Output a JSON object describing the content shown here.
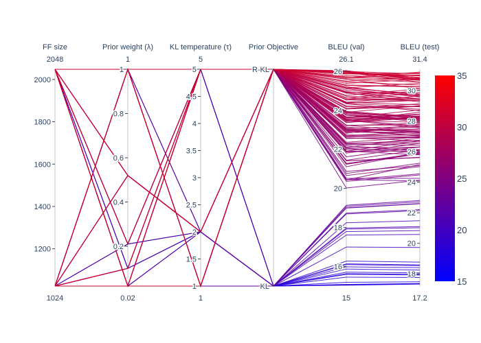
{
  "chart_data": {
    "type": "parallel_coordinates",
    "title": "",
    "colorscale": {
      "low_color": "#0000ff",
      "high_color": "#ff0000",
      "range": [
        15,
        35
      ],
      "ticks": [
        "15",
        "20",
        "25",
        "30",
        "35"
      ]
    },
    "dimensions": [
      {
        "label": "FF size",
        "range": [
          1024,
          2048
        ],
        "range_labels": [
          "1024",
          "2048"
        ],
        "ticks": [
          1200,
          1400,
          1600,
          1800,
          2000
        ],
        "tick_labels": [
          "1200",
          "1400",
          "1600",
          "1800",
          "2000"
        ]
      },
      {
        "label": "Prior weight (λ)",
        "range": [
          0.02,
          1
        ],
        "range_labels": [
          "0.02",
          "1"
        ],
        "ticks": [
          0.2,
          0.4,
          0.6,
          0.8,
          1
        ],
        "tick_labels": [
          "0.2",
          "0.4",
          "0.6",
          "0.8",
          "1"
        ]
      },
      {
        "label": "KL temperature (τ)",
        "range": [
          1,
          5
        ],
        "range_labels": [
          "1",
          "5"
        ],
        "ticks": [
          1,
          1.5,
          2,
          2.5,
          3,
          3.5,
          4,
          4.5,
          5
        ],
        "tick_labels": [
          "1",
          "1.5",
          "2",
          "2.5",
          "3",
          "3.5",
          "4",
          "4.5",
          "5"
        ]
      },
      {
        "label": "Prior Objective",
        "range": [
          0,
          1
        ],
        "range_labels": [
          "",
          ""
        ],
        "ticks": [
          0,
          1
        ],
        "tick_labels": [
          "KL",
          "R-KL"
        ]
      },
      {
        "label": "BLEU (val)",
        "range": [
          15,
          26.1
        ],
        "range_labels": [
          "15",
          "26.1"
        ],
        "ticks": [
          16,
          18,
          20,
          22,
          24,
          26
        ],
        "tick_labels": [
          "16",
          "18",
          "20",
          "22",
          "24",
          "26"
        ]
      },
      {
        "label": "BLEU (test)",
        "range": [
          17.2,
          31.4
        ],
        "range_labels": [
          "17.2",
          "31.4"
        ],
        "ticks": [
          18,
          20,
          22,
          24,
          26,
          28,
          30
        ],
        "tick_labels": [
          "18",
          "20",
          "22",
          "24",
          "26",
          "28",
          "30"
        ]
      }
    ],
    "configs": [
      [
        2048,
        1,
        5,
        1
      ],
      [
        2048,
        1,
        1,
        1
      ],
      [
        2048,
        0.02,
        5,
        1
      ],
      [
        2048,
        0.02,
        1,
        1
      ],
      [
        2048,
        0.52,
        2,
        1
      ],
      [
        2048,
        0.1,
        2,
        0
      ],
      [
        2048,
        1,
        5,
        0
      ],
      [
        2048,
        0.02,
        1,
        0
      ],
      [
        1024,
        1,
        5,
        1
      ],
      [
        1024,
        1,
        1,
        1
      ],
      [
        1024,
        0.02,
        5,
        1
      ],
      [
        1024,
        0.02,
        1,
        1
      ],
      [
        1024,
        0.52,
        2,
        1
      ],
      [
        1024,
        0.21,
        2,
        0
      ],
      [
        1024,
        1,
        5,
        0
      ],
      [
        1024,
        0.02,
        1,
        0
      ],
      [
        2048,
        0.21,
        5,
        1
      ],
      [
        1024,
        0.1,
        5,
        1
      ],
      [
        2048,
        0.02,
        2,
        0
      ],
      [
        1024,
        1,
        2,
        0
      ]
    ],
    "rkl_val_range": [
      20.0,
      26.05
    ],
    "kl_val_range": [
      15.0,
      19.2
    ],
    "high_test_range": [
      23.5,
      31.3
    ],
    "low_test_range": [
      17.3,
      22.9
    ],
    "n_rkl_runs": 130,
    "n_kl_runs": 25
  }
}
